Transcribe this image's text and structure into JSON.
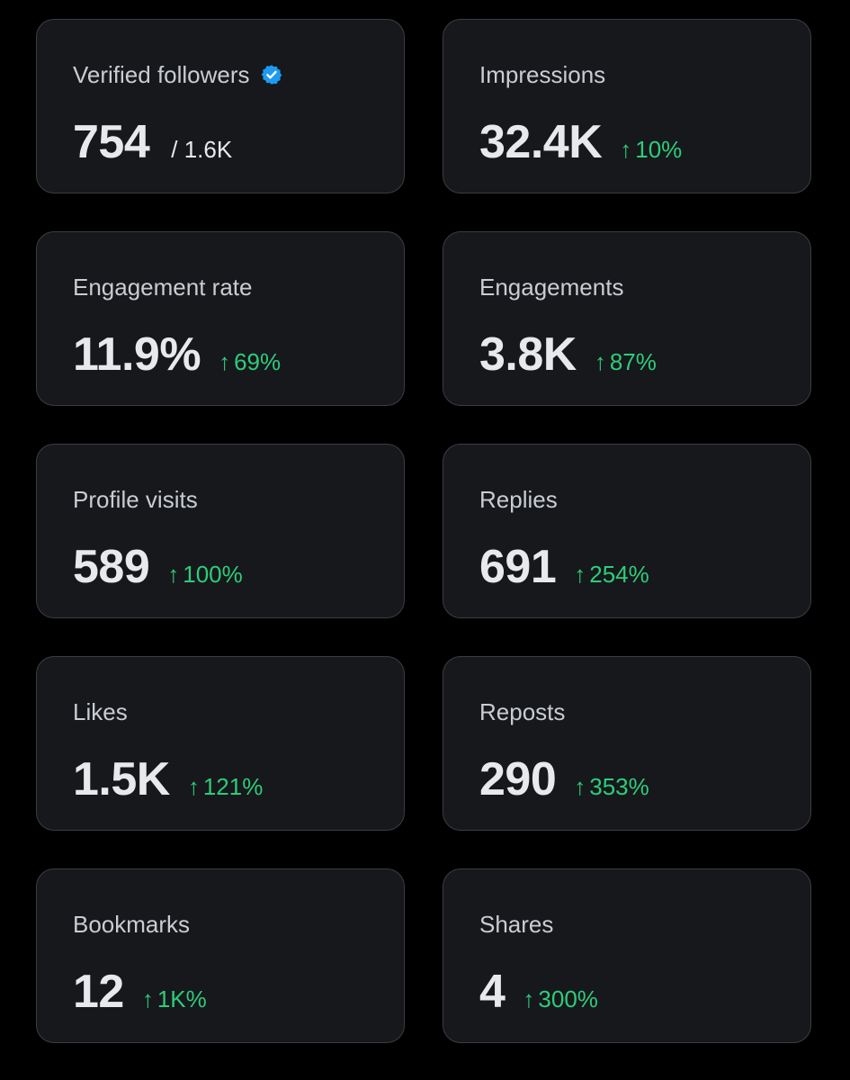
{
  "colors": {
    "background": "#000000",
    "card_background": "#16181c",
    "card_border": "#3a3d42",
    "label": "#c9ccd1",
    "value": "#e7e9ea",
    "positive_change": "#2ecc7a",
    "verified_badge": "#1d9bf0"
  },
  "icons": {
    "verified": "verified-badge-icon",
    "increase": "arrow-up-icon"
  },
  "arrow_glyph": "↑",
  "metrics": [
    {
      "label": "Verified followers",
      "value": "754",
      "total": "/ 1.6K"
    },
    {
      "label": "Impressions",
      "value": "32.4K",
      "change": "10%"
    },
    {
      "label": "Engagement rate",
      "value": "11.9%",
      "change": "69%"
    },
    {
      "label": "Engagements",
      "value": "3.8K",
      "change": "87%"
    },
    {
      "label": "Profile visits",
      "value": "589",
      "change": "100%"
    },
    {
      "label": "Replies",
      "value": "691",
      "change": "254%"
    },
    {
      "label": "Likes",
      "value": "1.5K",
      "change": "121%"
    },
    {
      "label": "Reposts",
      "value": "290",
      "change": "353%"
    },
    {
      "label": "Bookmarks",
      "value": "12",
      "change": "1K%"
    },
    {
      "label": "Shares",
      "value": "4",
      "change": "300%"
    }
  ]
}
